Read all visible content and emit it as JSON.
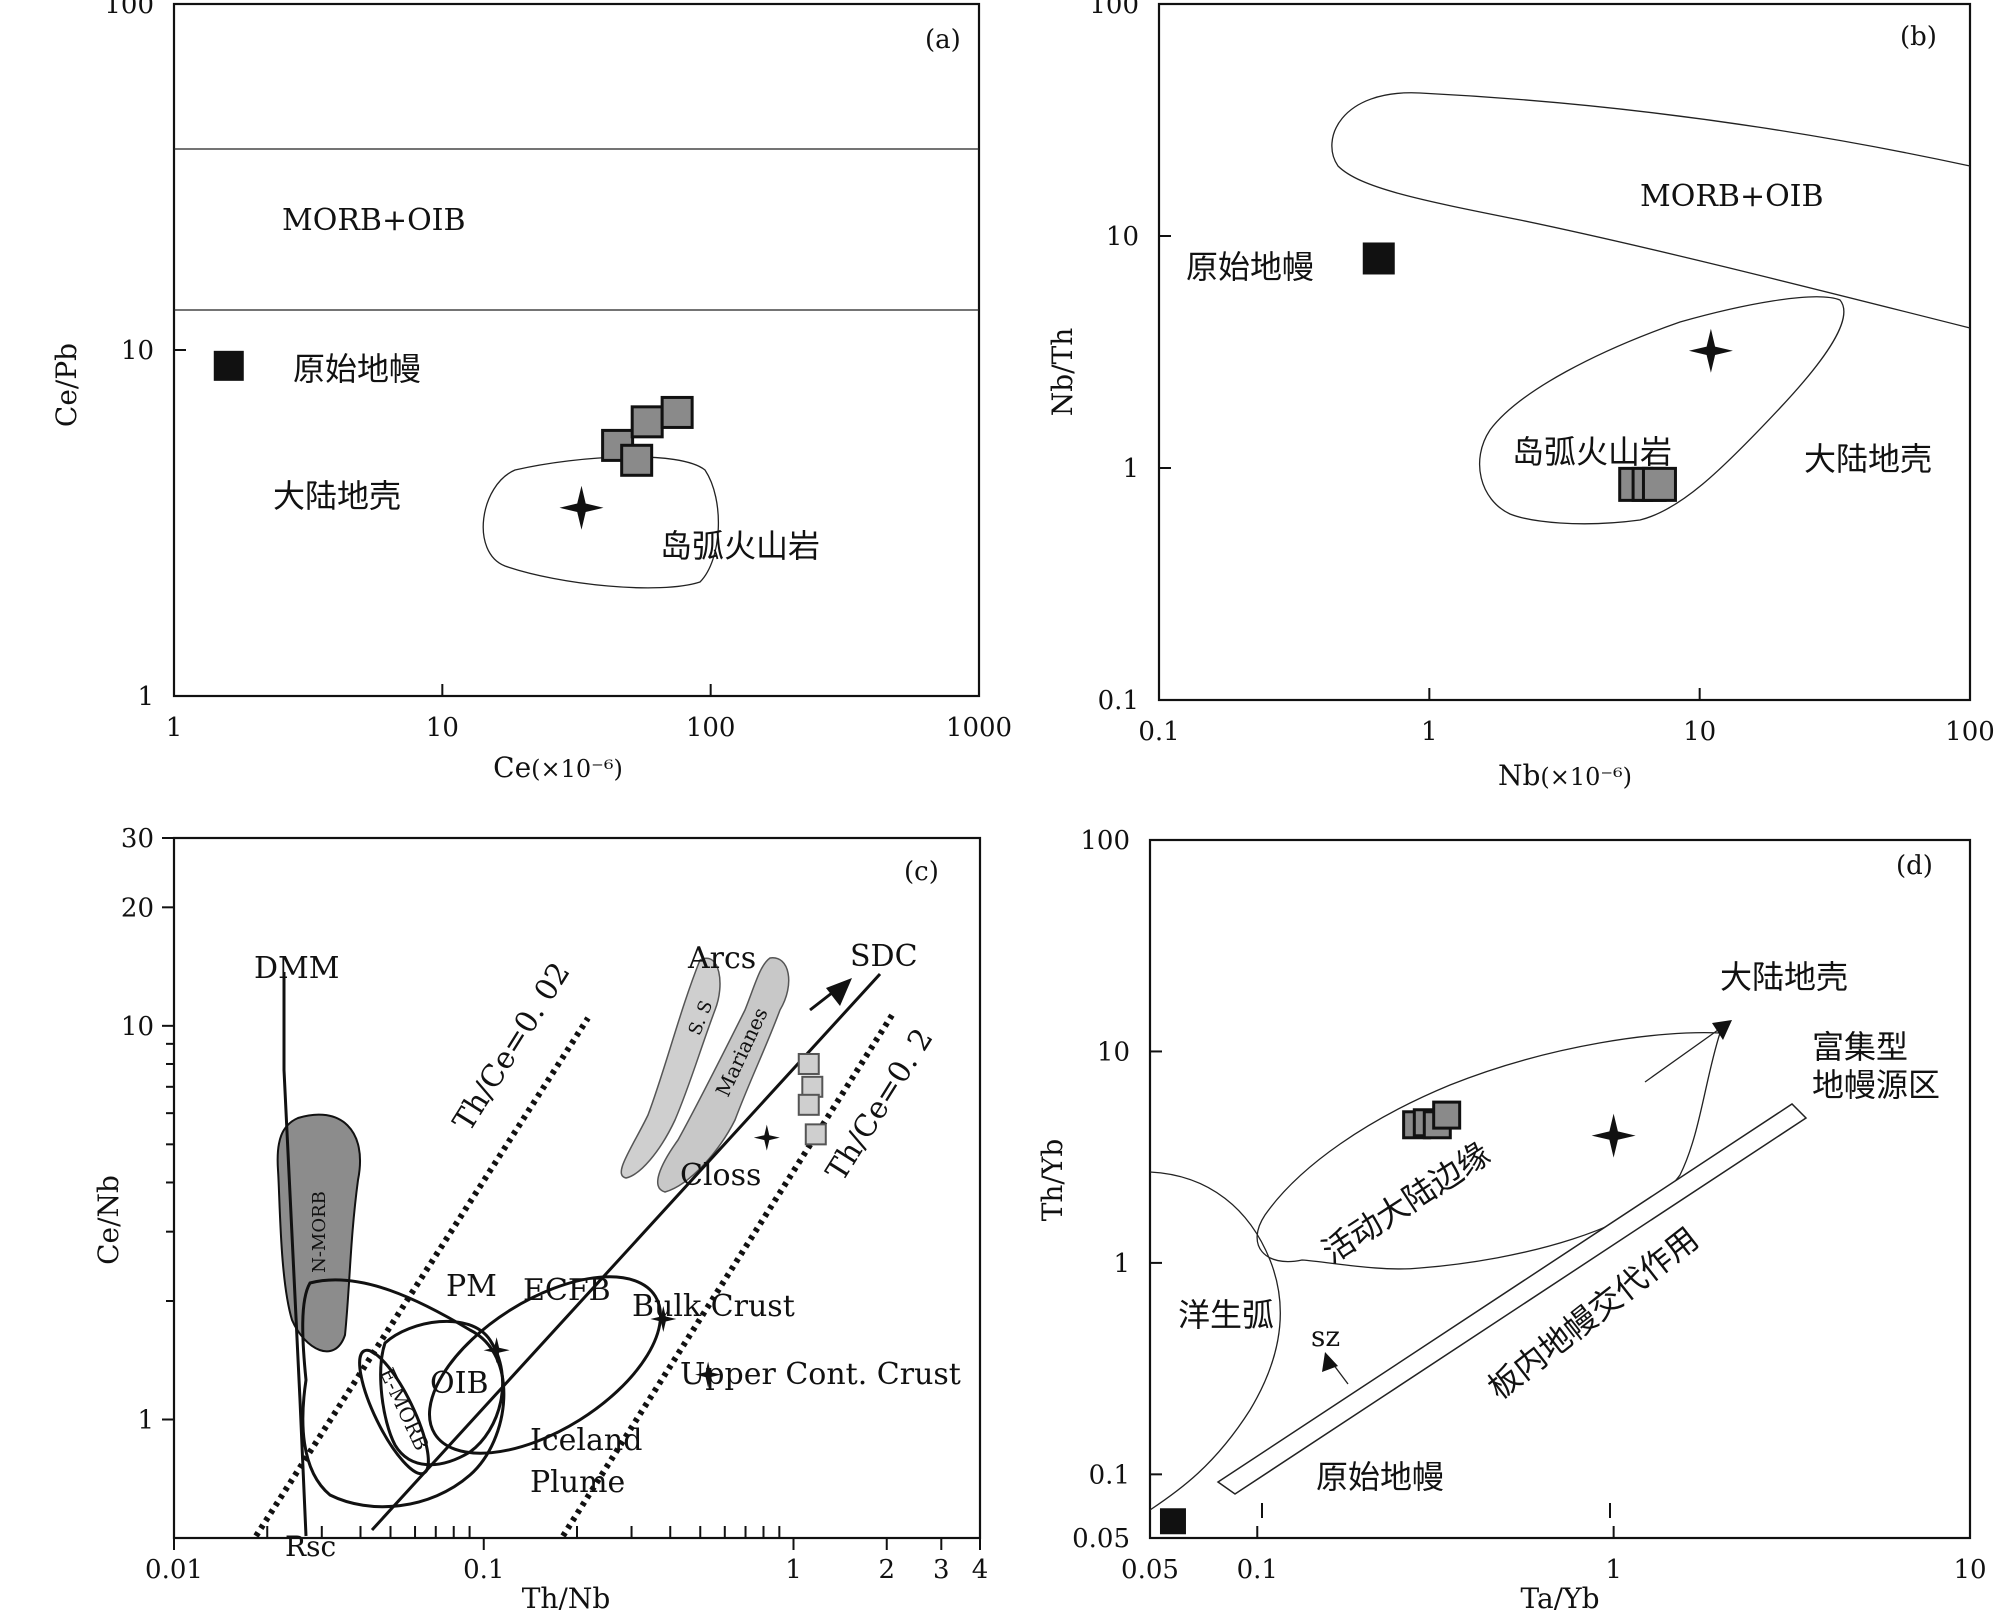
{
  "figure": {
    "panel_a": {
      "label": "(a)",
      "x_label": "Ce",
      "x_unit": "(×10⁻⁶)",
      "y_label": "Ce/Pb",
      "x_ticks": [
        "1",
        "10",
        "100",
        "1000"
      ],
      "y_ticks": [
        "1",
        "10",
        "100"
      ],
      "fields": {
        "oceanic": "MORB+OIB",
        "continental_crust": "大陆地壳",
        "island_arc": "岛弧火山岩",
        "primitive_mantle": "原始地幔"
      }
    },
    "panel_b": {
      "label": "(b)",
      "x_label": "Nb",
      "x_unit": "(×10⁻⁶)",
      "y_label": "Nb/Th",
      "x_ticks": [
        "0.1",
        "1",
        "10",
        "100"
      ],
      "y_ticks": [
        "0.1",
        "1",
        "10",
        "100"
      ],
      "fields": {
        "oceanic": "MORB+OIB",
        "continental_crust": "大陆地壳",
        "island_arc": "岛弧火山岩",
        "primitive_mantle": "原始地幔"
      }
    },
    "panel_c": {
      "label": "(c)",
      "x_label": "Th/Nb",
      "y_label": "Ce/Nb",
      "x_ticks": [
        "0.01",
        "0.1",
        "1",
        "2",
        "3",
        "4"
      ],
      "y_ticks": [
        "1",
        "10",
        "20",
        "30"
      ],
      "labels": {
        "dmm": "DMM",
        "nmorb": "N-MORB",
        "emorb": "E-MORB",
        "pm": "PM",
        "oib": "OIB",
        "ecfb": "ECFB",
        "iceland1": "Iceland",
        "iceland2": "Plume",
        "rsc": "Rsc",
        "bulk": "Bulk Crust",
        "ucc": "Upper Cont. Crust",
        "arcs": "Arcs",
        "ss": "S. S",
        "marianes": "Marianes",
        "closs": "Closs",
        "sdc": "SDC",
        "thce1": "Th/Ce=0. 02",
        "thce2": "Th/Ce=0. 2"
      }
    },
    "panel_d": {
      "label": "(d)",
      "x_label": "Ta/Yb",
      "y_label": "Th/Yb",
      "x_ticks": [
        "0.05",
        "0.1",
        "1",
        "10"
      ],
      "y_ticks": [
        "0.05",
        "0.1",
        "1",
        "10",
        "100"
      ],
      "labels": {
        "crust": "大陆地壳",
        "enriched1": "富集型",
        "enriched2": "地幔源区",
        "acm": "活动大陆边缘",
        "oia": "洋生弧",
        "sz": "sz",
        "wpm": "板内地幔交代作用",
        "pm": "原始地幔"
      }
    }
  },
  "chart_data": [
    {
      "panel": "a",
      "type": "scatter",
      "x_scale": "log",
      "y_scale": "log",
      "xlim": [
        1,
        1000
      ],
      "ylim": [
        1,
        100
      ],
      "title": "(a)",
      "xlabel": "Ce (×10⁻⁶)",
      "ylabel": "Ce/Pb",
      "boundary_lines_y": [
        40,
        13
      ],
      "series": [
        {
          "name": "samples",
          "marker": "square-gray",
          "points": [
            [
              45,
              5.3
            ],
            [
              58,
              6.2
            ],
            [
              75,
              6.6
            ],
            [
              53,
              4.8
            ]
          ]
        },
        {
          "name": "star",
          "marker": "star",
          "points": [
            [
              33,
              3.5
            ]
          ]
        },
        {
          "name": "原始地幔",
          "marker": "square-black",
          "points": [
            [
              1.6,
              9
            ]
          ]
        }
      ]
    },
    {
      "panel": "b",
      "type": "scatter",
      "x_scale": "log",
      "y_scale": "log",
      "xlim": [
        0.1,
        100
      ],
      "ylim": [
        0.1,
        100
      ],
      "title": "(b)",
      "xlabel": "Nb (×10⁻⁶)",
      "ylabel": "Nb/Th",
      "series": [
        {
          "name": "samples",
          "marker": "square-gray",
          "points": [
            [
              5.8,
              0.85
            ],
            [
              6.5,
              0.85
            ],
            [
              7.1,
              0.85
            ]
          ]
        },
        {
          "name": "star",
          "marker": "star",
          "points": [
            [
              11,
              3.2
            ]
          ]
        },
        {
          "name": "原始地幔",
          "marker": "square-black",
          "points": [
            [
              0.65,
              8
            ]
          ]
        }
      ]
    },
    {
      "panel": "c",
      "type": "scatter",
      "x_scale": "log",
      "y_scale": "log",
      "xlim": [
        0.01,
        4
      ],
      "ylim": [
        0.5,
        30
      ],
      "title": "(c)",
      "xlabel": "Th/Nb",
      "ylabel": "Ce/Nb",
      "series": [
        {
          "name": "samples",
          "marker": "square-lightgray",
          "points": [
            [
              1.12,
              8.0
            ],
            [
              1.15,
              7.0
            ],
            [
              1.12,
              6.3
            ],
            [
              1.18,
              5.3
            ]
          ]
        },
        {
          "name": "reference",
          "marker": "star",
          "points": [
            [
              0.11,
              1.5
            ],
            [
              0.38,
              1.8
            ],
            [
              0.53,
              1.3
            ],
            [
              0.82,
              5.2
            ]
          ]
        }
      ]
    },
    {
      "panel": "d",
      "type": "scatter",
      "x_scale": "log",
      "y_scale": "log",
      "xlim": [
        0.05,
        10
      ],
      "ylim": [
        0.05,
        100
      ],
      "title": "(d)",
      "xlabel": "Ta/Yb",
      "ylabel": "Th/Yb",
      "series": [
        {
          "name": "samples",
          "marker": "square-gray",
          "points": [
            [
              0.28,
              4.5
            ],
            [
              0.3,
              4.6
            ],
            [
              0.32,
              4.5
            ],
            [
              0.34,
              5.0
            ]
          ]
        },
        {
          "name": "star",
          "marker": "star",
          "points": [
            [
              1.0,
              4.0
            ]
          ]
        },
        {
          "name": "原始地幔",
          "marker": "square-black",
          "points": [
            [
              0.058,
              0.06
            ]
          ]
        }
      ]
    }
  ]
}
